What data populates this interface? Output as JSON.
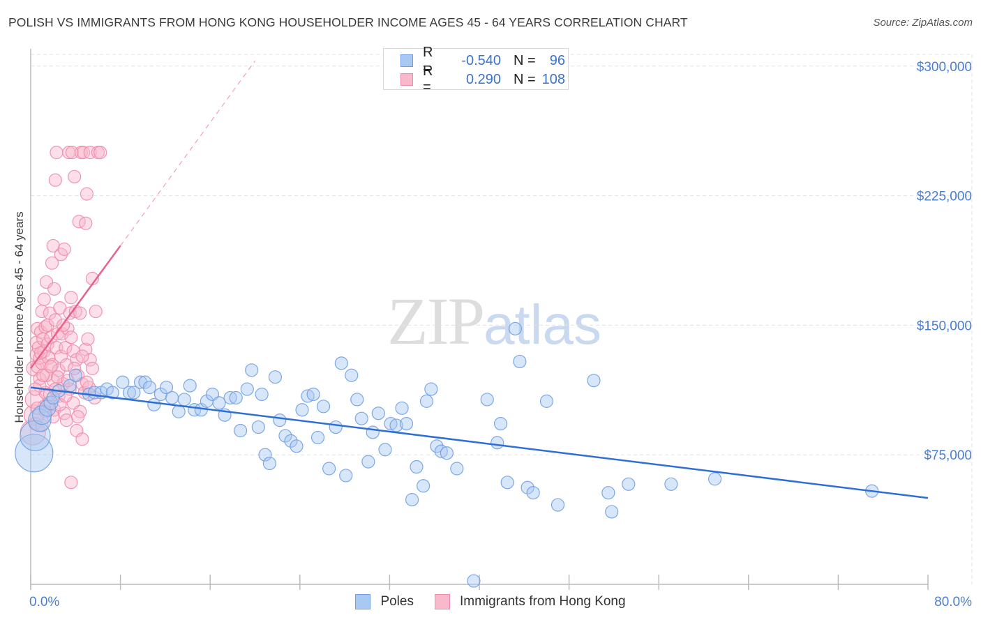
{
  "header": {
    "title": "POLISH VS IMMIGRANTS FROM HONG KONG HOUSEHOLDER INCOME AGES 45 - 64 YEARS CORRELATION CHART",
    "source": "Source: ZipAtlas.com"
  },
  "watermark": {
    "zip": "ZIP",
    "atlas": "atlas"
  },
  "legend": {
    "poles": {
      "r_label": "R =",
      "r_value": "-0.540",
      "n_label": "N =",
      "n_value": "96"
    },
    "hk": {
      "r_label": "R =",
      "r_value": "0.290",
      "n_label": "N =",
      "n_value": "108"
    }
  },
  "bottom_legend": {
    "poles": "Poles",
    "hk": "Immigrants from Hong Kong"
  },
  "colors": {
    "poles_fill": "#a9c8f2",
    "poles_stroke": "#6f9ee3",
    "poles_line": "#2f6fd4",
    "hk_fill": "#f8b9cd",
    "hk_stroke": "#ee8aab",
    "hk_line": "#e8608c",
    "grid": "#e3e3e3",
    "tick_label": "#4a7fd0"
  },
  "chart_data": {
    "type": "scatter",
    "title": "POLISH VS IMMIGRANTS FROM HONG KONG HOUSEHOLDER INCOME AGES 45 - 64 YEARS CORRELATION CHART",
    "xlabel": "",
    "ylabel": "Householder Income Ages 45 - 64 years",
    "xlim": [
      0,
      80
    ],
    "ylim": [
      0,
      310000
    ],
    "x_tick_labels": [
      "0.0%",
      "80.0%"
    ],
    "y_ticks": [
      75000,
      150000,
      225000,
      300000
    ],
    "y_tick_labels": [
      "$75,000",
      "$150,000",
      "$225,000",
      "$300,000"
    ],
    "grid": true,
    "series": [
      {
        "name": "Poles",
        "r": -0.54,
        "n": 96,
        "trend": {
          "x": [
            0,
            80
          ],
          "y": [
            114000,
            50000
          ]
        },
        "points": [
          [
            0.3,
            76000,
            3
          ],
          [
            0.4,
            86000,
            2.4
          ],
          [
            0.8,
            95000,
            1.8
          ],
          [
            1.0,
            98000,
            1.5
          ],
          [
            1.5,
            102000,
            1.3
          ],
          [
            1.8,
            105000,
            1.1
          ],
          [
            2.0,
            108000,
            1
          ],
          [
            2.5,
            112000,
            1
          ],
          [
            3.5,
            115000,
            1
          ],
          [
            4.0,
            121000,
            1
          ],
          [
            5.2,
            110000,
            1
          ],
          [
            5.7,
            111000,
            1
          ],
          [
            6.3,
            111000,
            1
          ],
          [
            6.8,
            113000,
            1
          ],
          [
            7.3,
            111000,
            1
          ],
          [
            8.2,
            117000,
            1
          ],
          [
            8.8,
            111000,
            1
          ],
          [
            9.2,
            111000,
            1
          ],
          [
            9.8,
            117000,
            1
          ],
          [
            10.2,
            117000,
            1
          ],
          [
            10.6,
            114000,
            1
          ],
          [
            11.0,
            104000,
            1
          ],
          [
            11.6,
            110000,
            1
          ],
          [
            12.1,
            114000,
            1
          ],
          [
            12.6,
            108000,
            1
          ],
          [
            13.2,
            100000,
            1
          ],
          [
            13.7,
            107000,
            1
          ],
          [
            14.2,
            115000,
            1
          ],
          [
            14.6,
            101000,
            1
          ],
          [
            15.2,
            101000,
            1
          ],
          [
            15.7,
            106000,
            1
          ],
          [
            16.2,
            110000,
            1
          ],
          [
            16.8,
            105000,
            1
          ],
          [
            17.3,
            98000,
            1
          ],
          [
            17.8,
            108000,
            1
          ],
          [
            18.3,
            108000,
            1
          ],
          [
            18.7,
            89000,
            1
          ],
          [
            19.3,
            113000,
            1
          ],
          [
            19.7,
            124000,
            1
          ],
          [
            20.3,
            91000,
            1
          ],
          [
            20.6,
            110000,
            1
          ],
          [
            20.9,
            75000,
            1
          ],
          [
            21.3,
            70000,
            1
          ],
          [
            21.8,
            120000,
            1
          ],
          [
            22.2,
            95000,
            1
          ],
          [
            22.7,
            86000,
            1
          ],
          [
            23.2,
            83000,
            1
          ],
          [
            23.7,
            80000,
            1
          ],
          [
            24.2,
            101000,
            1
          ],
          [
            24.7,
            109000,
            1
          ],
          [
            25.2,
            110000,
            1
          ],
          [
            25.6,
            85000,
            1
          ],
          [
            26.1,
            103000,
            1
          ],
          [
            26.6,
            67000,
            1
          ],
          [
            27.2,
            91000,
            1
          ],
          [
            27.7,
            128000,
            1
          ],
          [
            28.1,
            63000,
            1
          ],
          [
            28.6,
            121000,
            1
          ],
          [
            29.1,
            107000,
            1
          ],
          [
            29.5,
            96000,
            1
          ],
          [
            30.1,
            71000,
            1
          ],
          [
            30.5,
            88000,
            1
          ],
          [
            31.0,
            99000,
            1
          ],
          [
            31.6,
            78000,
            1
          ],
          [
            32.1,
            93000,
            1
          ],
          [
            32.6,
            92000,
            1
          ],
          [
            33.1,
            102000,
            1
          ],
          [
            33.5,
            93000,
            1
          ],
          [
            34.0,
            49000,
            1
          ],
          [
            34.4,
            68000,
            1
          ],
          [
            35.0,
            57000,
            1
          ],
          [
            35.3,
            106000,
            1
          ],
          [
            35.7,
            113000,
            1
          ],
          [
            36.2,
            80000,
            1
          ],
          [
            36.6,
            77000,
            1
          ],
          [
            37.1,
            76000,
            1
          ],
          [
            38.0,
            67000,
            1
          ],
          [
            39.5,
            2000,
            1
          ],
          [
            40.7,
            107000,
            1
          ],
          [
            41.6,
            82000,
            1
          ],
          [
            41.9,
            93000,
            1
          ],
          [
            42.5,
            59000,
            1
          ],
          [
            43.2,
            148000,
            1
          ],
          [
            43.6,
            129000,
            1
          ],
          [
            44.3,
            56000,
            1
          ],
          [
            44.8,
            53000,
            1
          ],
          [
            46.0,
            106000,
            1
          ],
          [
            47.0,
            46000,
            1
          ],
          [
            50.2,
            118000,
            1
          ],
          [
            51.5,
            53000,
            1
          ],
          [
            51.8,
            42000,
            1
          ],
          [
            53.3,
            58000,
            1
          ],
          [
            57.1,
            58000,
            1
          ],
          [
            61.0,
            61000,
            1
          ],
          [
            75.0,
            54000,
            1
          ]
        ]
      },
      {
        "name": "Immigrants from Hong Kong",
        "r": 0.29,
        "n": 108,
        "trend": {
          "x": [
            0,
            8
          ],
          "y": [
            125000,
            196000
          ]
        },
        "trend_dashed": {
          "x": [
            8,
            20
          ],
          "y": [
            196000,
            303000
          ]
        },
        "points": [
          [
            0.2,
            88000,
            2
          ],
          [
            0.3,
            98000,
            1.6
          ],
          [
            0.3,
            107000,
            1.4
          ],
          [
            0.3,
            125000,
            1.2
          ],
          [
            0.4,
            93000,
            1
          ],
          [
            0.5,
            140000,
            1
          ],
          [
            0.5,
            133000,
            1
          ],
          [
            0.6,
            126000,
            1
          ],
          [
            0.6,
            148000,
            1
          ],
          [
            0.7,
            137000,
            1
          ],
          [
            0.8,
            131000,
            1
          ],
          [
            0.8,
            119000,
            1
          ],
          [
            0.9,
            146000,
            1
          ],
          [
            1.0,
            158000,
            1
          ],
          [
            1.0,
            128000,
            1
          ],
          [
            1.1,
            142000,
            1
          ],
          [
            1.2,
            165000,
            1
          ],
          [
            1.2,
            135000,
            1
          ],
          [
            1.3,
            149000,
            1
          ],
          [
            1.3,
            111000,
            1
          ],
          [
            1.4,
            175000,
            1
          ],
          [
            1.5,
            150000,
            1
          ],
          [
            1.5,
            139000,
            1
          ],
          [
            1.6,
            131000,
            1
          ],
          [
            1.6,
            105000,
            1
          ],
          [
            1.7,
            157000,
            1
          ],
          [
            1.8,
            143000,
            1
          ],
          [
            1.9,
            127000,
            1
          ],
          [
            1.9,
            186000,
            1
          ],
          [
            2.0,
            196000,
            1
          ],
          [
            2.0,
            118000,
            1
          ],
          [
            2.1,
            171000,
            1
          ],
          [
            2.1,
            101000,
            1
          ],
          [
            2.2,
            153000,
            1
          ],
          [
            2.2,
            234000,
            1
          ],
          [
            2.3,
            137000,
            1
          ],
          [
            2.3,
            250000,
            1
          ],
          [
            2.4,
            145000,
            1
          ],
          [
            2.5,
            124000,
            1
          ],
          [
            2.5,
            109000,
            1
          ],
          [
            2.6,
            160000,
            1
          ],
          [
            2.7,
            132000,
            1
          ],
          [
            2.7,
            191000,
            1
          ],
          [
            2.8,
            145000,
            1
          ],
          [
            2.9,
            116000,
            1
          ],
          [
            3.0,
            194000,
            1
          ],
          [
            3.0,
            99000,
            1
          ],
          [
            3.1,
            137000,
            1
          ],
          [
            3.2,
            127000,
            1
          ],
          [
            3.2,
            95000,
            1
          ],
          [
            3.3,
            148000,
            1
          ],
          [
            3.4,
            250000,
            1
          ],
          [
            3.5,
            157000,
            1
          ],
          [
            3.5,
            113000,
            1
          ],
          [
            3.6,
            166000,
            1
          ],
          [
            3.6,
            59000,
            1
          ],
          [
            3.7,
            250000,
            1
          ],
          [
            3.8,
            135000,
            1
          ],
          [
            3.8,
            105000,
            1
          ],
          [
            3.9,
            236000,
            1
          ],
          [
            4.0,
            158000,
            1
          ],
          [
            4.1,
            130000,
            1
          ],
          [
            4.1,
            89000,
            1
          ],
          [
            4.2,
            121000,
            1
          ],
          [
            4.3,
            210000,
            1
          ],
          [
            4.4,
            157000,
            1
          ],
          [
            4.4,
            100000,
            1
          ],
          [
            4.5,
            250000,
            1
          ],
          [
            4.6,
            116000,
            1
          ],
          [
            4.6,
            84000,
            1
          ],
          [
            4.7,
            250000,
            1
          ],
          [
            4.8,
            111000,
            1
          ],
          [
            4.9,
            136000,
            1
          ],
          [
            4.9,
            209000,
            1
          ],
          [
            5.0,
            226000,
            1
          ],
          [
            5.1,
            142000,
            1
          ],
          [
            5.2,
            114000,
            1
          ],
          [
            5.3,
            130000,
            1
          ],
          [
            5.3,
            250000,
            1
          ],
          [
            5.5,
            125000,
            1
          ],
          [
            5.5,
            177000,
            1
          ],
          [
            5.7,
            108000,
            1
          ],
          [
            5.8,
            158000,
            1
          ],
          [
            6.0,
            250000,
            1
          ],
          [
            6.2,
            250000,
            1
          ],
          [
            0.8,
            115000,
            1
          ],
          [
            1.0,
            92000,
            1
          ],
          [
            1.2,
            103000,
            1
          ],
          [
            1.4,
            121000,
            1
          ],
          [
            1.7,
            110000,
            1
          ],
          [
            2.0,
            97000,
            1
          ],
          [
            2.4,
            120000,
            1
          ],
          [
            2.6,
            104000,
            1
          ],
          [
            2.9,
            150000,
            1
          ],
          [
            3.1,
            109000,
            1
          ],
          [
            3.3,
            118000,
            1
          ],
          [
            3.6,
            143000,
            1
          ],
          [
            3.9,
            125000,
            1
          ],
          [
            4.2,
            97000,
            1
          ],
          [
            4.6,
            132000,
            1
          ],
          [
            5.0,
            117000,
            1
          ],
          [
            0.4,
            113000,
            1
          ],
          [
            0.6,
            102000,
            1
          ],
          [
            0.9,
            134000,
            1
          ],
          [
            1.1,
            121000,
            1
          ],
          [
            1.3,
            100000,
            1
          ],
          [
            1.8,
            126000,
            1
          ],
          [
            2.2,
            113000,
            1
          ]
        ]
      }
    ]
  }
}
